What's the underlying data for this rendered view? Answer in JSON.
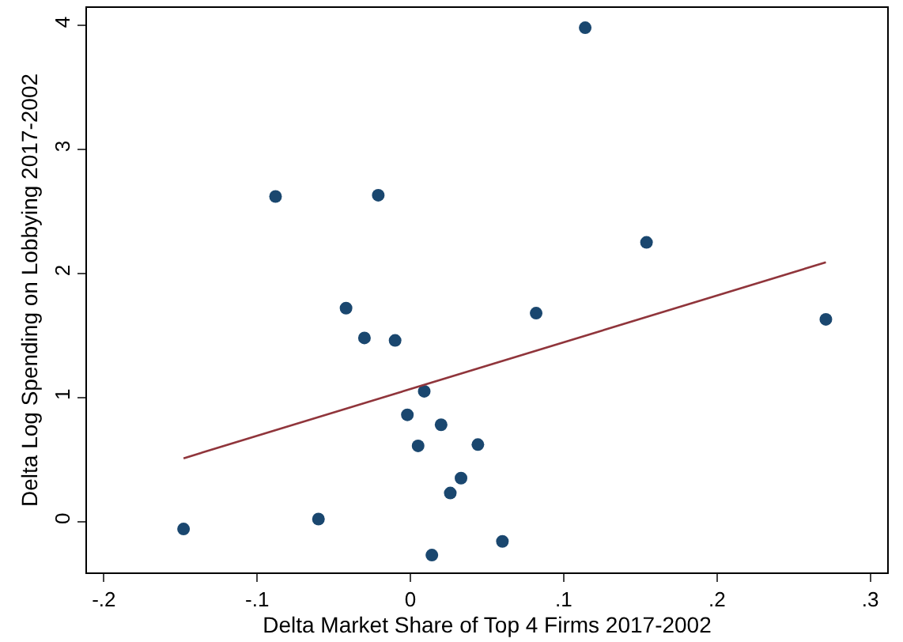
{
  "chart_data": {
    "type": "scatter",
    "xlabel": "Delta Market Share of Top 4 Firms 2017-2002",
    "ylabel": "Delta Log Spending on Lobbying 2017-2002",
    "xlim": [
      -0.211,
      0.311
    ],
    "ylim": [
      -0.41,
      4.14
    ],
    "xticks": [
      {
        "value": -0.2,
        "label": "-.2"
      },
      {
        "value": -0.1,
        "label": "-.1"
      },
      0,
      {
        "value": 0.1,
        "label": ".1"
      },
      {
        "value": 0.2,
        "label": ".2"
      },
      {
        "value": 0.3,
        "label": ".3"
      }
    ],
    "yticks": [
      0,
      1,
      2,
      3,
      4
    ],
    "grid": false,
    "legend": false,
    "series": [
      {
        "marker": "circle",
        "color": "#1a476f",
        "x": [
          -0.148,
          -0.088,
          -0.021,
          -0.042,
          -0.03,
          -0.01,
          0.009,
          -0.002,
          0.005,
          0.02,
          0.044,
          0.033,
          0.026,
          0.014,
          -0.06,
          0.06,
          0.082,
          0.114,
          0.154,
          0.271
        ],
        "values": [
          -0.06,
          2.62,
          2.63,
          1.72,
          1.48,
          1.46,
          1.05,
          0.86,
          0.61,
          0.78,
          0.62,
          0.35,
          0.23,
          -0.27,
          0.02,
          -0.16,
          1.68,
          3.98,
          2.25,
          1.63
        ]
      },
      {
        "type": "line",
        "marker": "none",
        "color": "#90353b",
        "x": [
          -0.148,
          0.271
        ],
        "values": [
          0.51,
          2.09
        ]
      }
    ]
  }
}
